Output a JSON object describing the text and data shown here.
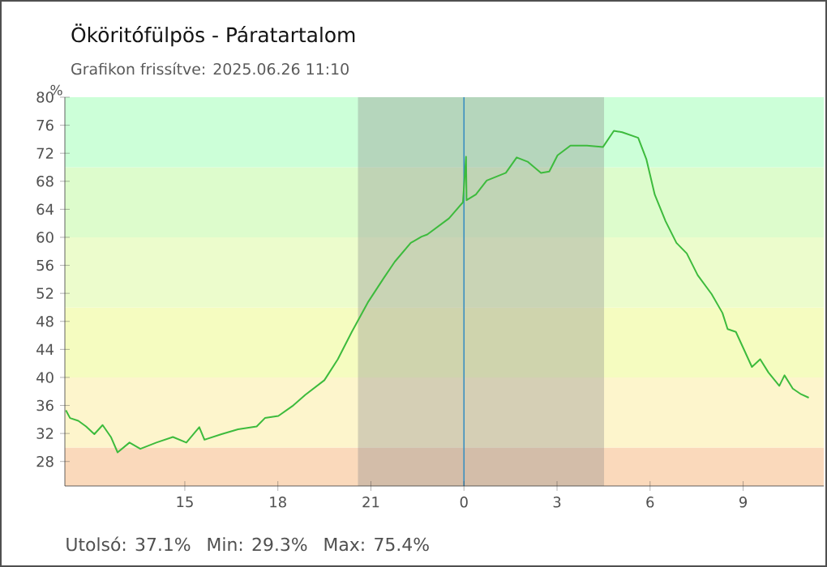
{
  "chart_data": {
    "type": "line",
    "title": "Ököritófülpös - Páratartalom",
    "subtitle": "Grafikon frissítve: 2025.06.26 11:10",
    "ylabel": "%",
    "annotations": [
      "Utolsó: 37.1%",
      "Min: 29.3%",
      "Max: 75.4%"
    ],
    "xlim": [
      "2025-06-25T11:08",
      "2025-06-26T11:36"
    ],
    "ylim": [
      24.5,
      80
    ],
    "xticks": [
      {
        "value": "2025-06-25T15:00",
        "label": "15"
      },
      {
        "value": "2025-06-25T18:00",
        "label": "18"
      },
      {
        "value": "2025-06-25T21:00",
        "label": "21"
      },
      {
        "value": "2025-06-26T00:00",
        "label": "0"
      },
      {
        "value": "2025-06-26T03:00",
        "label": "3"
      },
      {
        "value": "2025-06-26T06:00",
        "label": "6"
      },
      {
        "value": "2025-06-26T09:00",
        "label": "9"
      }
    ],
    "yticks": [
      28,
      32,
      36,
      40,
      44,
      48,
      52,
      56,
      60,
      64,
      68,
      72,
      76,
      80
    ],
    "grid": false,
    "marker": "none",
    "line_style": "solid",
    "bands": [
      {
        "axis": "y",
        "from": 24.5,
        "to": 30,
        "color": "#fad9bb"
      },
      {
        "axis": "y",
        "from": 30,
        "to": 40,
        "color": "#fdf5cc"
      },
      {
        "axis": "y",
        "from": 40,
        "to": 50,
        "color": "#f5fcc0"
      },
      {
        "axis": "y",
        "from": 50,
        "to": 60,
        "color": "#ecfccc"
      },
      {
        "axis": "y",
        "from": 60,
        "to": 70,
        "color": "#ddfccc"
      },
      {
        "axis": "y",
        "from": 70,
        "to": 80,
        "color": "#ccffd8"
      },
      {
        "axis": "x",
        "from": "2025-06-25T20:35",
        "to": "2025-06-26T04:31",
        "color": "#8a8a8a"
      }
    ],
    "ref_lines": [
      {
        "axis": "x",
        "value": "2025-06-26T00:00",
        "color": "#3a8fc0"
      }
    ],
    "series": [
      {
        "color": "#3dbb3d",
        "x": [
          "2025-06-25T11:10",
          "2025-06-25T11:18",
          "2025-06-25T11:34",
          "2025-06-25T11:49",
          "2025-06-25T12:05",
          "2025-06-25T12:21",
          "2025-06-25T12:37",
          "2025-06-25T12:50",
          "2025-06-25T13:13",
          "2025-06-25T13:34",
          "2025-06-25T14:05",
          "2025-06-25T14:37",
          "2025-06-25T15:03",
          "2025-06-25T15:28",
          "2025-06-25T15:38",
          "2025-06-25T16:11",
          "2025-06-25T16:43",
          "2025-06-25T17:19",
          "2025-06-25T17:35",
          "2025-06-25T18:01",
          "2025-06-25T18:28",
          "2025-06-25T18:53",
          "2025-06-25T19:30",
          "2025-06-25T19:56",
          "2025-06-25T20:23",
          "2025-06-25T20:54",
          "2025-06-25T21:25",
          "2025-06-25T21:46",
          "2025-06-25T22:17",
          "2025-06-25T22:38",
          "2025-06-25T22:49",
          "2025-06-25T23:31",
          "2025-06-25T23:58",
          "2025-06-26T00:04",
          "2025-06-26T00:05",
          "2025-06-26T00:23",
          "2025-06-26T00:44",
          "2025-06-26T01:21",
          "2025-06-26T01:42",
          "2025-06-26T02:03",
          "2025-06-26T02:29",
          "2025-06-26T02:45",
          "2025-06-26T03:01",
          "2025-06-26T03:26",
          "2025-06-26T03:58",
          "2025-06-26T04:29",
          "2025-06-26T04:50",
          "2025-06-26T05:06",
          "2025-06-26T05:37",
          "2025-06-26T05:53",
          "2025-06-26T06:09",
          "2025-06-26T06:30",
          "2025-06-26T06:51",
          "2025-06-26T07:11",
          "2025-06-26T07:32",
          "2025-06-26T07:59",
          "2025-06-26T08:20",
          "2025-06-26T08:30",
          "2025-06-26T08:46",
          "2025-06-26T09:17",
          "2025-06-26T09:33",
          "2025-06-26T09:49",
          "2025-06-26T10:10",
          "2025-06-26T10:20",
          "2025-06-26T10:36",
          "2025-06-26T10:52",
          "2025-06-26T11:07"
        ],
        "values": [
          35.3,
          34.2,
          33.8,
          33.0,
          31.9,
          33.2,
          31.5,
          29.3,
          30.7,
          29.8,
          30.7,
          31.5,
          30.7,
          32.9,
          31.1,
          31.9,
          32.6,
          33.0,
          34.2,
          34.5,
          35.9,
          37.5,
          39.6,
          42.6,
          46.5,
          50.7,
          54.2,
          56.5,
          59.2,
          60.1,
          60.4,
          62.7,
          65.0,
          71.5,
          65.3,
          66.1,
          68.1,
          69.2,
          71.4,
          70.8,
          69.2,
          69.4,
          71.7,
          73.1,
          73.1,
          72.9,
          75.2,
          75.0,
          74.2,
          71.1,
          66.1,
          62.3,
          59.2,
          57.7,
          54.6,
          51.9,
          49.2,
          46.9,
          46.5,
          41.5,
          42.6,
          40.7,
          38.8,
          40.3,
          38.4,
          37.6,
          37.1
        ]
      }
    ]
  }
}
